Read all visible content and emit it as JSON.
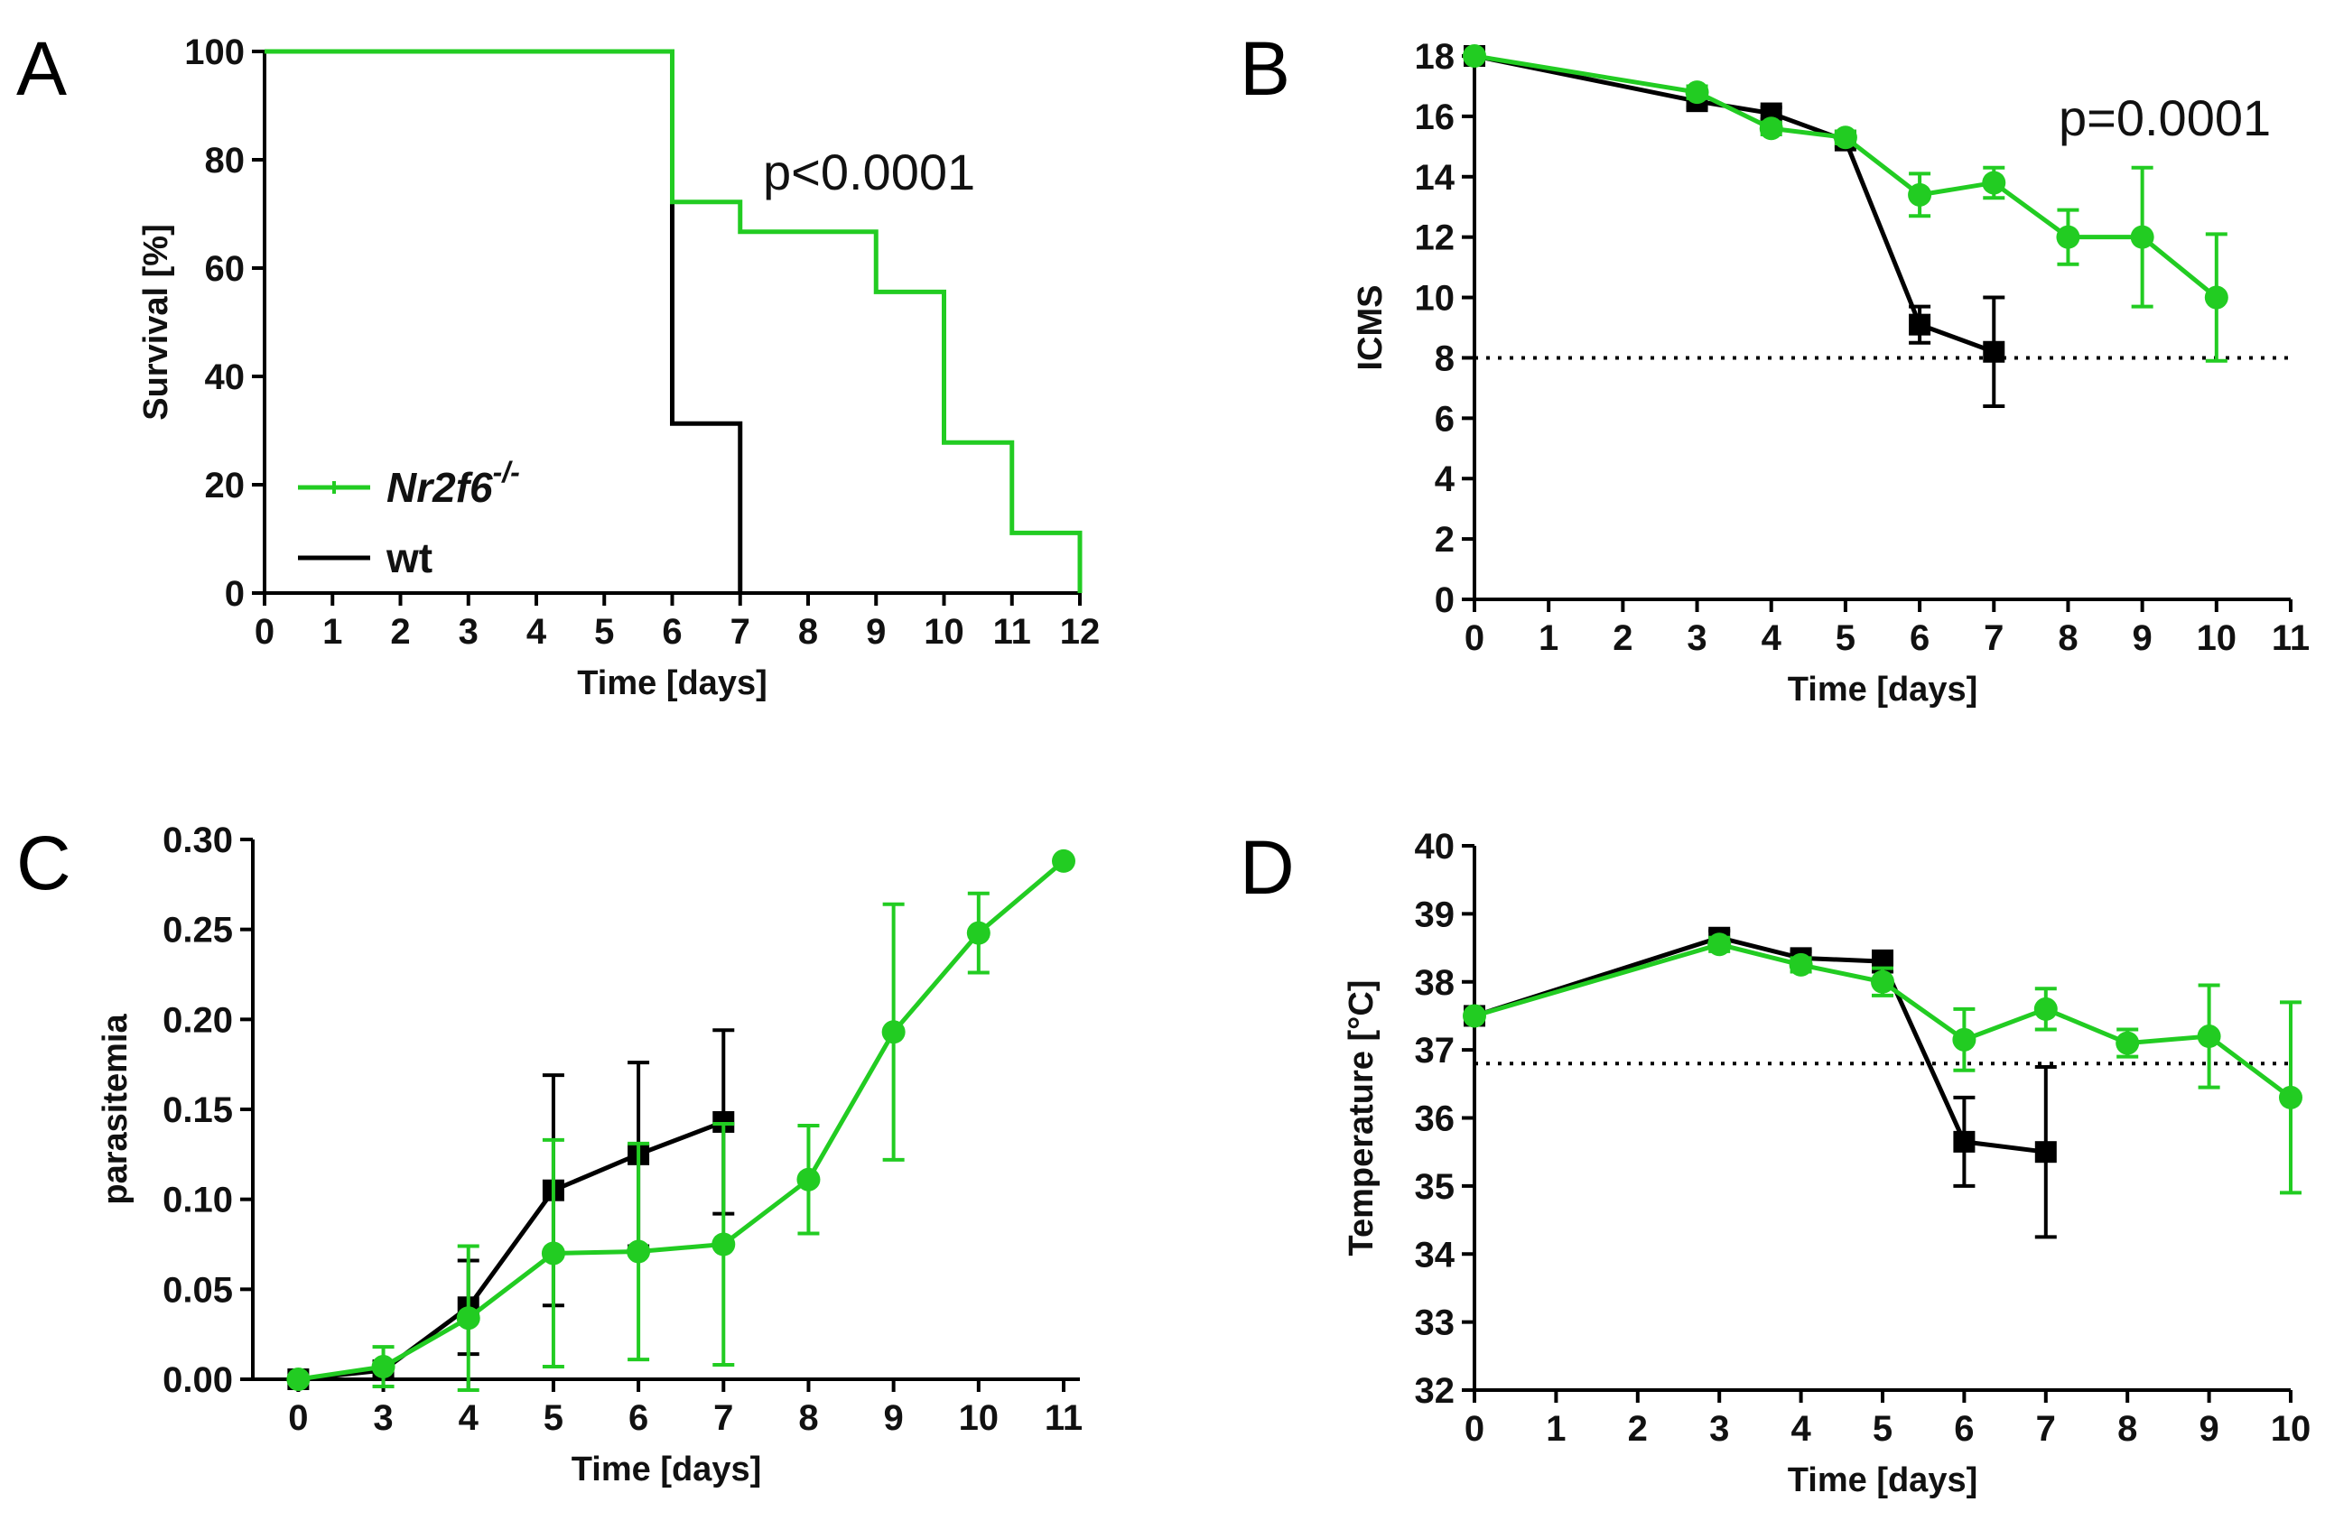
{
  "colors": {
    "nr2f6": "#22cc22",
    "wt": "#000000",
    "axis": "#000000"
  },
  "chart_data": [
    {
      "id": "A",
      "type": "line",
      "panel_label": "A",
      "title": "",
      "xlabel": "Time [days]",
      "ylabel": "Survival [%]",
      "xlim": [
        0,
        12
      ],
      "ylim": [
        0,
        100
      ],
      "xticks": [
        0,
        1,
        2,
        3,
        4,
        5,
        6,
        7,
        8,
        9,
        10,
        11,
        12
      ],
      "yticks": [
        0,
        20,
        40,
        60,
        80,
        100
      ],
      "step": true,
      "annotation": "p<0.0001",
      "legend_position": "lower-left",
      "series": [
        {
          "name": "Nr2f6",
          "superscript": "-/-",
          "color": "#22cc22",
          "x": [
            0,
            6,
            6,
            7,
            7,
            9,
            9,
            10,
            10,
            11,
            11,
            12,
            12
          ],
          "y": [
            100,
            100,
            72.2,
            72.2,
            66.7,
            66.7,
            55.6,
            55.6,
            27.8,
            27.8,
            11.1,
            11.1,
            0
          ]
        },
        {
          "name": "wt",
          "superscript": "",
          "color": "#000000",
          "x": [
            0,
            6,
            6,
            7,
            7
          ],
          "y": [
            100,
            100,
            31.3,
            31.3,
            0
          ]
        }
      ]
    },
    {
      "id": "B",
      "type": "line",
      "panel_label": "B",
      "title": "",
      "xlabel": "Time [days]",
      "ylabel": "ICMS",
      "xlim": [
        0,
        11
      ],
      "ylim": [
        0,
        18
      ],
      "xticks": [
        0,
        1,
        2,
        3,
        4,
        5,
        6,
        7,
        8,
        9,
        10,
        11
      ],
      "yticks": [
        0,
        2,
        4,
        6,
        8,
        10,
        12,
        14,
        16,
        18
      ],
      "threshold": 8,
      "annotation": "p=0.0001",
      "series": [
        {
          "name": "Nr2f6-/-",
          "color": "#22cc22",
          "marker": "circle",
          "x": [
            0,
            3,
            4,
            5,
            6,
            7,
            8,
            9,
            10
          ],
          "y": [
            18,
            16.8,
            15.6,
            15.3,
            13.4,
            13.8,
            12,
            12,
            10
          ],
          "err": [
            0,
            0.2,
            0.2,
            0.2,
            0.7,
            0.5,
            0.9,
            2.3,
            2.1
          ]
        },
        {
          "name": "wt",
          "color": "#000000",
          "marker": "square",
          "x": [
            0,
            3,
            4,
            5,
            6,
            7
          ],
          "y": [
            18,
            16.5,
            16.1,
            15.2,
            9.1,
            8.2
          ],
          "err": [
            0,
            0.2,
            0.2,
            0.2,
            0.6,
            1.8
          ]
        }
      ]
    },
    {
      "id": "C",
      "type": "line",
      "panel_label": "C",
      "title": "",
      "xlabel": "Time [days]",
      "ylabel": "parasitemia",
      "xlim": [
        -0.5,
        11.2
      ],
      "ylim": [
        0,
        0.3
      ],
      "xticks": [
        0,
        3,
        4,
        5,
        6,
        7,
        8,
        9,
        10,
        11
      ],
      "yticks": [
        0,
        0.05,
        0.1,
        0.15,
        0.2,
        0.25,
        0.3
      ],
      "ytick_labels": [
        "0.00",
        "0.05",
        "0.10",
        "0.15",
        "0.20",
        "0.25",
        "0.30"
      ],
      "ordinal_x": true,
      "series": [
        {
          "name": "Nr2f6-/-",
          "color": "#22cc22",
          "marker": "circle",
          "x": [
            0,
            3,
            4,
            5,
            6,
            7,
            8,
            9,
            10,
            11
          ],
          "y": [
            0,
            0.007,
            0.034,
            0.07,
            0.071,
            0.075,
            0.111,
            0.193,
            0.248,
            0.288
          ],
          "err": [
            0,
            0.011,
            0.04,
            0.063,
            0.06,
            0.067,
            0.03,
            0.071,
            0.022,
            0
          ]
        },
        {
          "name": "wt",
          "color": "#000000",
          "marker": "square",
          "x": [
            0,
            3,
            4,
            5,
            6,
            7
          ],
          "y": [
            0,
            0.005,
            0.04,
            0.105,
            0.125,
            0.143
          ],
          "err": [
            0,
            0.004,
            0.026,
            0.064,
            0.051,
            0.051
          ]
        }
      ]
    },
    {
      "id": "D",
      "type": "line",
      "panel_label": "D",
      "title": "",
      "xlabel": "Time [days]",
      "ylabel": "Temperature [°C]",
      "xlim": [
        0,
        10
      ],
      "ylim": [
        32,
        40
      ],
      "xticks": [
        0,
        1,
        2,
        3,
        4,
        5,
        6,
        7,
        8,
        9,
        10
      ],
      "yticks": [
        32,
        33,
        34,
        35,
        36,
        37,
        38,
        39,
        40
      ],
      "threshold": 36.8,
      "series": [
        {
          "name": "Nr2f6-/-",
          "color": "#22cc22",
          "marker": "circle",
          "x": [
            0,
            3,
            4,
            5,
            6,
            7,
            8,
            9,
            10
          ],
          "y": [
            37.5,
            38.55,
            38.25,
            38.0,
            37.15,
            37.6,
            37.1,
            37.2,
            36.3
          ],
          "err": [
            0,
            0.1,
            0.1,
            0.2,
            0.45,
            0.3,
            0.2,
            0.75,
            1.4
          ]
        },
        {
          "name": "wt",
          "color": "#000000",
          "marker": "square",
          "x": [
            0,
            3,
            4,
            5,
            6,
            7
          ],
          "y": [
            37.5,
            38.65,
            38.35,
            38.3,
            35.65,
            35.5
          ],
          "err": [
            0,
            0.1,
            0.1,
            0.15,
            0.65,
            1.25
          ]
        }
      ]
    }
  ]
}
